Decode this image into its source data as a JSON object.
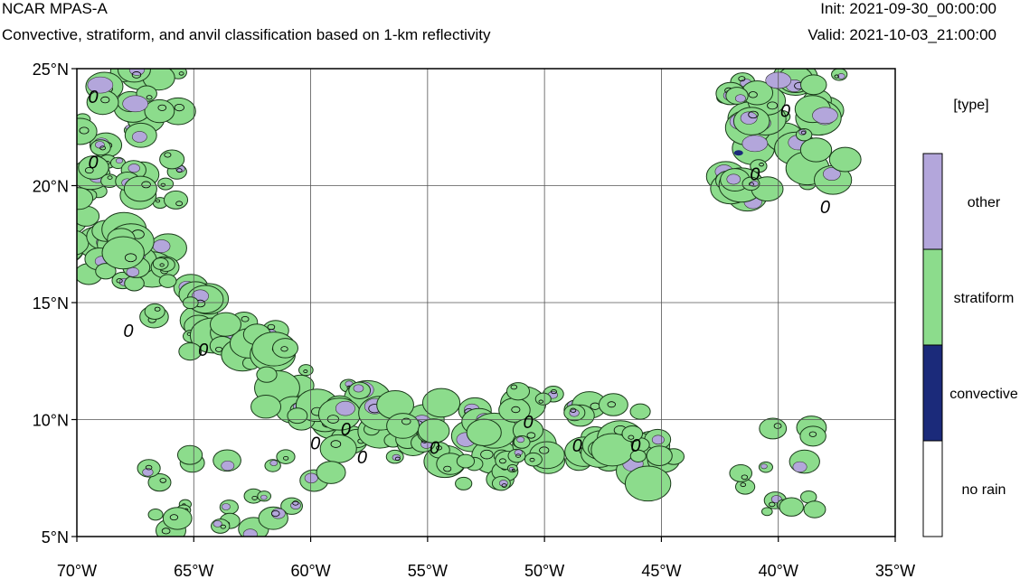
{
  "header": {
    "title": "NCAR MPAS-A",
    "subtitle": "Convective, stratiform, and anvil classification based on 1-km reflectivity",
    "init": "Init: 2021-09-30_00:00:00",
    "valid": "Valid: 2021-10-03_21:00:00"
  },
  "map": {
    "lon_range": [
      -70,
      -35
    ],
    "lat_range": [
      5,
      25
    ],
    "grid": true,
    "x_ticks": [
      {
        "value": -70,
        "label": "70°W"
      },
      {
        "value": -65,
        "label": "65°W"
      },
      {
        "value": -60,
        "label": "60°W"
      },
      {
        "value": -55,
        "label": "55°W"
      },
      {
        "value": -50,
        "label": "50°W"
      },
      {
        "value": -45,
        "label": "45°W"
      },
      {
        "value": -40,
        "label": "40°W"
      },
      {
        "value": -35,
        "label": "35°W"
      }
    ],
    "y_ticks": [
      {
        "value": 25,
        "label": "25°N"
      },
      {
        "value": 20,
        "label": "20°N"
      },
      {
        "value": 15,
        "label": "15°N"
      },
      {
        "value": 10,
        "label": "10°N"
      },
      {
        "value": 5,
        "label": "5°N"
      }
    ],
    "contour_label": "0"
  },
  "legend": {
    "title": "[type]",
    "entries": [
      {
        "label": "other",
        "color": "#b3a6db"
      },
      {
        "label": "stratiform",
        "color": "#8cdc8c"
      },
      {
        "label": "convective",
        "color": "#1b2a7a"
      },
      {
        "label": "no rain",
        "color": "#ffffff"
      }
    ]
  },
  "colors": {
    "other": "#b3a6db",
    "stratiform": "#8cdc8c",
    "convective": "#1b2a7a",
    "no_rain": "#ffffff"
  }
}
